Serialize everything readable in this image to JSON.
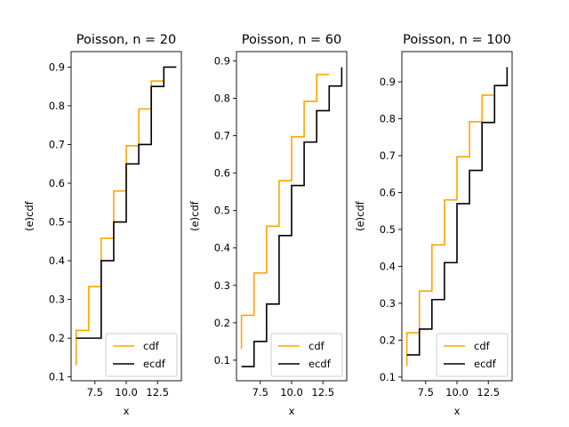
{
  "chart_data": [
    {
      "type": "line",
      "step": "post",
      "title": "Poisson, n = 20",
      "xlabel": "x",
      "ylabel": "(e)cdf",
      "xlim": [
        5.6,
        14.4
      ],
      "ylim": [
        0.09,
        0.94
      ],
      "xticks": [
        7.5,
        10.0,
        12.5
      ],
      "xtick_labels": [
        "7.5",
        "10.0",
        "12.5"
      ],
      "yticks": [
        0.1,
        0.2,
        0.3,
        0.4,
        0.5,
        0.6,
        0.7,
        0.8,
        0.9
      ],
      "ytick_labels": [
        "0.1",
        "0.2",
        "0.3",
        "0.4",
        "0.5",
        "0.6",
        "0.7",
        "0.8",
        "0.9"
      ],
      "legend": "lower-right",
      "series": [
        {
          "name": "cdf",
          "color": "#ffa500",
          "x": [
            6,
            6,
            7,
            8,
            9,
            10,
            11,
            12,
            13
          ],
          "y": [
            0.13,
            0.22,
            0.333,
            0.458,
            0.58,
            0.697,
            0.792,
            0.864,
            0.864
          ]
        },
        {
          "name": "ecdf",
          "color": "#000000",
          "x": [
            6,
            8,
            9,
            10,
            11,
            12,
            13,
            14
          ],
          "y": [
            0.2,
            0.4,
            0.5,
            0.65,
            0.7,
            0.85,
            0.9,
            0.9
          ]
        }
      ]
    },
    {
      "type": "line",
      "step": "post",
      "title": "Poisson, n = 60",
      "xlabel": "x",
      "ylabel": "(e)cdf",
      "xlim": [
        5.6,
        14.4
      ],
      "ylim": [
        0.045,
        0.925
      ],
      "xticks": [
        7.5,
        10.0,
        12.5
      ],
      "xtick_labels": [
        "7.5",
        "10.0",
        "12.5"
      ],
      "yticks": [
        0.1,
        0.2,
        0.3,
        0.4,
        0.5,
        0.6,
        0.7,
        0.8,
        0.9
      ],
      "ytick_labels": [
        "0.1",
        "0.2",
        "0.3",
        "0.4",
        "0.5",
        "0.6",
        "0.7",
        "0.8",
        "0.9"
      ],
      "legend": "lower-right",
      "series": [
        {
          "name": "cdf",
          "color": "#ffa500",
          "x": [
            6,
            6,
            7,
            8,
            9,
            10,
            11,
            12,
            13
          ],
          "y": [
            0.13,
            0.22,
            0.333,
            0.458,
            0.58,
            0.697,
            0.792,
            0.864,
            0.864
          ]
        },
        {
          "name": "ecdf",
          "color": "#000000",
          "x": [
            6,
            7,
            8,
            9,
            10,
            11,
            12,
            13,
            14,
            14
          ],
          "y": [
            0.083,
            0.15,
            0.25,
            0.433,
            0.567,
            0.683,
            0.767,
            0.833,
            0.833,
            0.883
          ]
        }
      ]
    },
    {
      "type": "line",
      "step": "post",
      "title": "Poisson, n = 100",
      "xlabel": "x",
      "ylabel": "(e)cdf",
      "xlim": [
        5.6,
        14.4
      ],
      "ylim": [
        0.09,
        0.982
      ],
      "xticks": [
        7.5,
        10.0,
        12.5
      ],
      "xtick_labels": [
        "7.5",
        "10.0",
        "12.5"
      ],
      "yticks": [
        0.1,
        0.2,
        0.3,
        0.4,
        0.5,
        0.6,
        0.7,
        0.8,
        0.9
      ],
      "ytick_labels": [
        "0.1",
        "0.2",
        "0.3",
        "0.4",
        "0.5",
        "0.6",
        "0.7",
        "0.8",
        "0.9"
      ],
      "legend": "lower-right",
      "series": [
        {
          "name": "cdf",
          "color": "#ffa500",
          "x": [
            6,
            6,
            7,
            8,
            9,
            10,
            11,
            12,
            13
          ],
          "y": [
            0.13,
            0.22,
            0.333,
            0.458,
            0.58,
            0.697,
            0.792,
            0.864,
            0.864
          ]
        },
        {
          "name": "ecdf",
          "color": "#000000",
          "x": [
            6,
            7,
            8,
            9,
            10,
            11,
            12,
            13,
            14,
            14
          ],
          "y": [
            0.16,
            0.23,
            0.31,
            0.41,
            0.57,
            0.66,
            0.79,
            0.89,
            0.89,
            0.94
          ]
        }
      ]
    }
  ]
}
